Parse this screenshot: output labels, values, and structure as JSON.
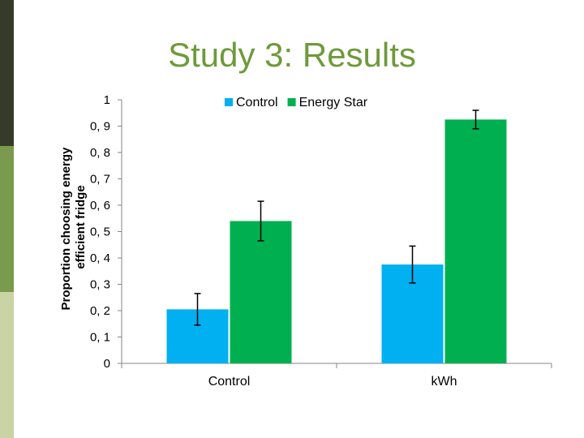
{
  "slide": {
    "title": "Study 3: Results",
    "colors": {
      "strip_dark": "#353b28",
      "strip_mid": "#7a9a4e",
      "strip_light": "#c9d3a4",
      "title": "#6e9a3a"
    }
  },
  "chart_data": {
    "type": "bar",
    "title": "",
    "xlabel": "",
    "ylabel_lines": [
      "Proportion choosing energy",
      "efficient fridge"
    ],
    "categories": [
      "Control",
      "kWh"
    ],
    "series": [
      {
        "name": "Control",
        "color": "#00b0f0",
        "values": [
          0.205,
          0.375
        ],
        "error": [
          0.06,
          0.07
        ]
      },
      {
        "name": "Energy Star",
        "color": "#00b050",
        "values": [
          0.54,
          0.925
        ],
        "error": [
          0.075,
          0.035
        ]
      }
    ],
    "ylim": [
      0,
      1
    ],
    "yticks": [
      "0",
      "0, 1",
      "0, 2",
      "0, 3",
      "0, 4",
      "0, 5",
      "0, 6",
      "0, 7",
      "0, 8",
      "0, 9",
      "1"
    ],
    "grid": false,
    "legend": "top-center"
  }
}
